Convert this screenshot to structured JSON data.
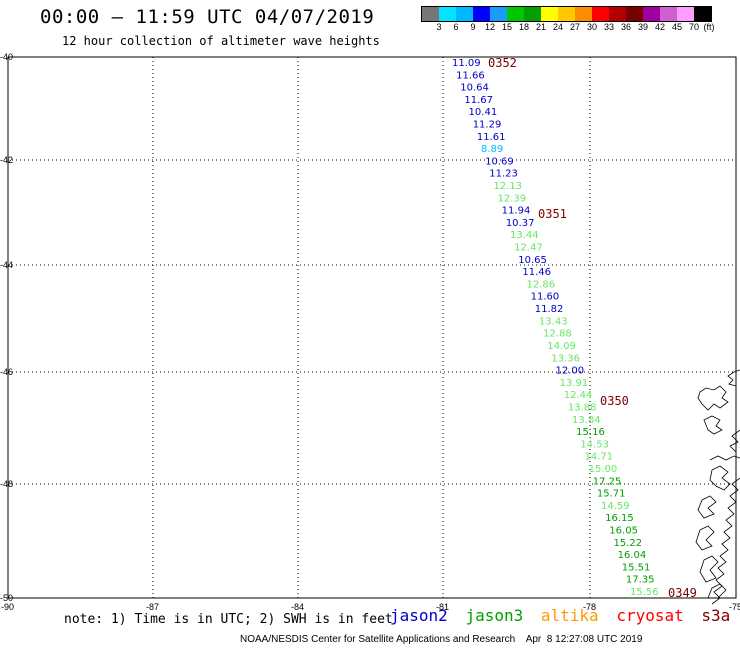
{
  "header": {
    "title": "00:00 – 11:59 UTC 04/07/2019",
    "subtitle": "12 hour collection of altimeter wave heights"
  },
  "colorbar": {
    "colors": [
      "#777777",
      "#00e5ff",
      "#00b8ff",
      "#0000ff",
      "#1a9cff",
      "#00c800",
      "#00a000",
      "#ffff00",
      "#ffc800",
      "#ff8c00",
      "#ff0000",
      "#b40000",
      "#780000",
      "#a000a0",
      "#d060d0",
      "#ff9cff",
      "#000000"
    ],
    "ticks": [
      "3",
      "6",
      "9",
      "12",
      "15",
      "18",
      "21",
      "24",
      "27",
      "30",
      "33",
      "36",
      "39",
      "42",
      "45",
      "70"
    ],
    "unit": "(ft)"
  },
  "map": {
    "lat_labels": [
      "-40",
      "-42",
      "-44",
      "-46",
      "-48",
      "-50"
    ],
    "lon_labels": [
      "-90",
      "-87",
      "-84",
      "-81",
      "-78",
      "-75"
    ],
    "lat_range": [
      -50,
      -40
    ],
    "lon_range": [
      -90,
      -75
    ]
  },
  "satellites": {
    "jason2": {
      "name": "jason2",
      "color": "#0000c8"
    },
    "jason3": {
      "name": "jason3",
      "color": "#00a000"
    },
    "altika": {
      "name": "altika",
      "color": "#ff9900"
    },
    "cryosat": {
      "name": "cryosat",
      "color": "#ff0000"
    },
    "s3a": {
      "name": "s3a",
      "color": "#800000"
    }
  },
  "observations": [
    {
      "value": "11.09",
      "color": "#0000c8"
    },
    {
      "value": "11.66",
      "color": "#0000c8"
    },
    {
      "value": "10.64",
      "color": "#0000c8"
    },
    {
      "value": "11.67",
      "color": "#0000c8"
    },
    {
      "value": "10.41",
      "color": "#0000c8"
    },
    {
      "value": "11.29",
      "color": "#0000c8"
    },
    {
      "value": "11.61",
      "color": "#0000c8"
    },
    {
      "value": "8.89",
      "color": "#00b8ff"
    },
    {
      "value": "10.69",
      "color": "#0000c8"
    },
    {
      "value": "11.23",
      "color": "#0000c8"
    },
    {
      "value": "12.13",
      "color": "#66e666"
    },
    {
      "value": "12.39",
      "color": "#66e666"
    },
    {
      "value": "11.94",
      "color": "#0000c8"
    },
    {
      "value": "10.37",
      "color": "#0000c8"
    },
    {
      "value": "13.44",
      "color": "#66e666"
    },
    {
      "value": "12.47",
      "color": "#66e666"
    },
    {
      "value": "10.65",
      "color": "#0000c8"
    },
    {
      "value": "11.46",
      "color": "#0000c8"
    },
    {
      "value": "12.86",
      "color": "#66e666"
    },
    {
      "value": "11.60",
      "color": "#0000c8"
    },
    {
      "value": "11.82",
      "color": "#0000c8"
    },
    {
      "value": "13.43",
      "color": "#66e666"
    },
    {
      "value": "12.88",
      "color": "#66e666"
    },
    {
      "value": "14.09",
      "color": "#66e666"
    },
    {
      "value": "13.36",
      "color": "#66e666"
    },
    {
      "value": "12.00",
      "color": "#0000c8"
    },
    {
      "value": "13.91",
      "color": "#66e666"
    },
    {
      "value": "12.44",
      "color": "#66e666"
    },
    {
      "value": "13.88",
      "color": "#66e666"
    },
    {
      "value": "13.84",
      "color": "#66e666"
    },
    {
      "value": "15.16",
      "color": "#00a000"
    },
    {
      "value": "14.53",
      "color": "#66e666"
    },
    {
      "value": "14.71",
      "color": "#66e666"
    },
    {
      "value": "15.00",
      "color": "#66e666"
    },
    {
      "value": "17.25",
      "color": "#00a000"
    },
    {
      "value": "15.71",
      "color": "#00a000"
    },
    {
      "value": "14.59",
      "color": "#66e666"
    },
    {
      "value": "16.15",
      "color": "#00a000"
    },
    {
      "value": "16.05",
      "color": "#00a000"
    },
    {
      "value": "15.22",
      "color": "#00a000"
    },
    {
      "value": "16.04",
      "color": "#00a000"
    },
    {
      "value": "15.51",
      "color": "#00a000"
    },
    {
      "value": "17.35",
      "color": "#00a000"
    },
    {
      "value": "15.56",
      "color": "#66e666"
    }
  ],
  "pass_times": [
    {
      "label": "0352"
    },
    {
      "label": "0351"
    },
    {
      "label": "0350"
    },
    {
      "label": "0349"
    }
  ],
  "footer": {
    "note": "note: 1) Time is in UTC; 2) SWH is in feet",
    "credit": "NOAA/NESDIS Center for Satellite Applications and Research    Apr  8 12:27:08 UTC 2019"
  }
}
